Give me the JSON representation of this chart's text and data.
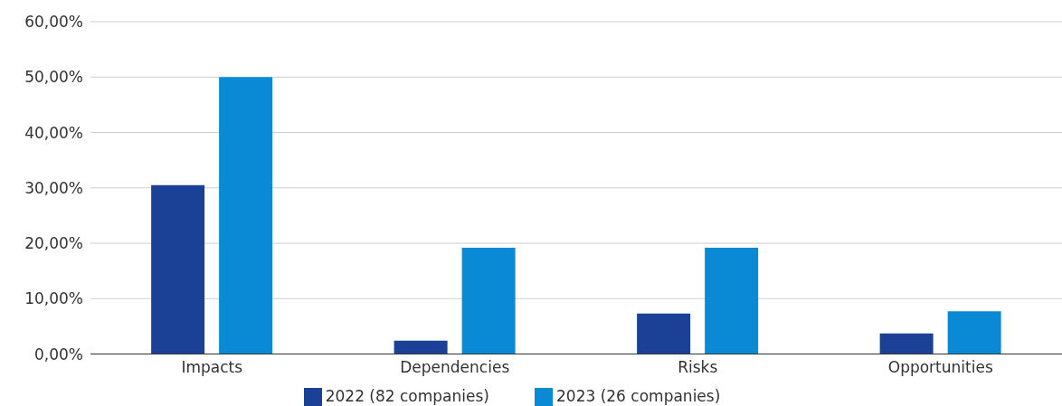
{
  "chart_data": {
    "type": "bar",
    "categories": [
      "Impacts",
      "Dependencies",
      "Risks",
      "Opportunities"
    ],
    "series": [
      {
        "name": "2022 (82 companies)",
        "color": "#1a4196",
        "values": [
          30.5,
          2.4,
          7.3,
          3.7
        ]
      },
      {
        "name": "2023 (26 companies)",
        "color": "#0a8ad4",
        "values": [
          50,
          19.2,
          19.2,
          7.7
        ]
      }
    ],
    "ylim": [
      0,
      60
    ],
    "yticks": [
      {
        "value": 0,
        "label": "0,00%"
      },
      {
        "value": 10,
        "label": "10,00%"
      },
      {
        "value": 20,
        "label": "20,00%"
      },
      {
        "value": 30,
        "label": "30,00%"
      },
      {
        "value": 40,
        "label": "40,00%"
      },
      {
        "value": 50,
        "label": "50,00%"
      },
      {
        "value": 60,
        "label": "60,00%"
      }
    ],
    "grid": "y",
    "legend": "bottom"
  }
}
